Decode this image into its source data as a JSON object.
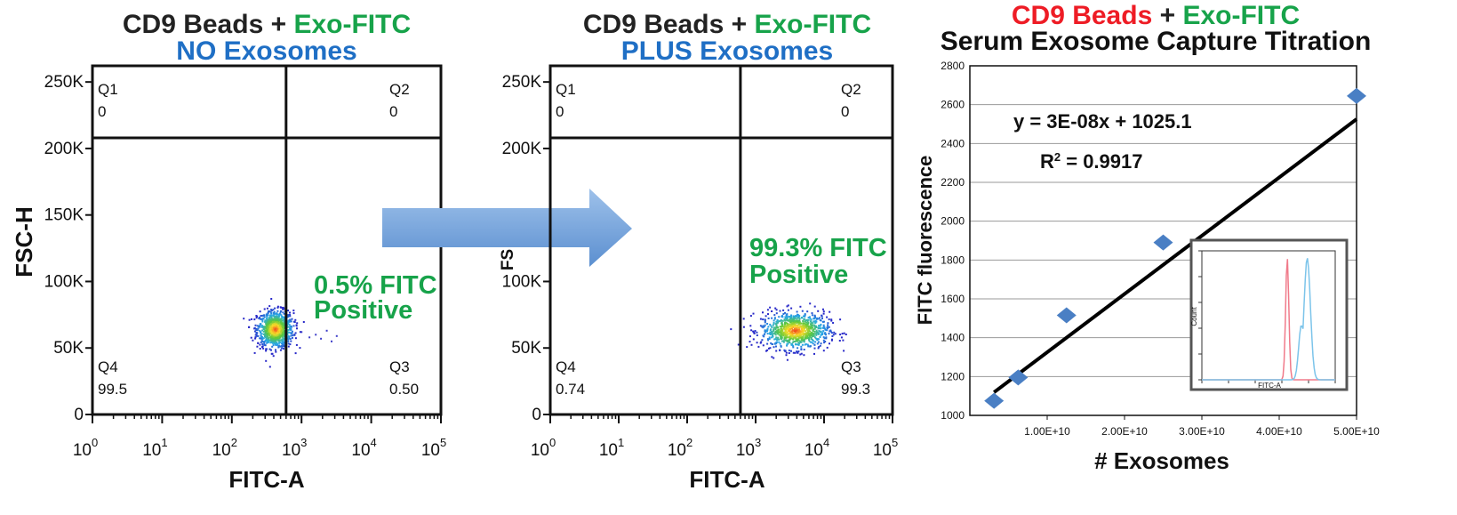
{
  "colors": {
    "dark": "#222222",
    "green": "#17a34a",
    "blue": "#1f6fc5",
    "red": "#ee1c25",
    "marker": "#4a7fc4",
    "arrow": "#6f9fd8"
  },
  "chart_data": [
    {
      "type": "scatter",
      "title_parts": [
        "CD9 Beads",
        " + ",
        "Exo-FITC"
      ],
      "subtitle": "NO Exosomes",
      "xlabel": "FITC-A",
      "ylabel": "FSC-H",
      "x_scale": "log",
      "xlim": [
        1,
        100000
      ],
      "ylim": [
        0,
        262144
      ],
      "x_tick_base": "10",
      "x_tick_exponents": [
        "0",
        "1",
        "2",
        "3",
        "4",
        "5"
      ],
      "y_ticks": [
        {
          "value": 0,
          "label": "0"
        },
        {
          "value": 50000,
          "label": "50K"
        },
        {
          "value": 100000,
          "label": "100K"
        },
        {
          "value": 150000,
          "label": "150K"
        },
        {
          "value": 200000,
          "label": "200K"
        },
        {
          "value": 250000,
          "label": "250K"
        }
      ],
      "gate": {
        "x": 600,
        "y": 208000
      },
      "quadrants": [
        {
          "name": "Q1",
          "value": "0",
          "position": "top-left"
        },
        {
          "name": "Q2",
          "value": "0",
          "position": "top-right"
        },
        {
          "name": "Q4",
          "value": "99.5",
          "position": "bottom-left"
        },
        {
          "name": "Q3",
          "value": "0.50",
          "position": "bottom-right"
        }
      ],
      "annotation": [
        "0.5% FITC",
        "Positive"
      ],
      "population": {
        "center_x": 420,
        "center_y": 64000,
        "spread_log_x": 0.13,
        "spread_y": 7000
      },
      "outliers": [
        {
          "x": 1000,
          "y": 62000
        },
        {
          "x": 1300,
          "y": 58000
        },
        {
          "x": 1600,
          "y": 60000
        },
        {
          "x": 1900,
          "y": 57000
        },
        {
          "x": 2300,
          "y": 63000
        },
        {
          "x": 2700,
          "y": 55000
        },
        {
          "x": 3200,
          "y": 59000
        }
      ]
    },
    {
      "type": "scatter",
      "title_parts": [
        "CD9 Beads",
        " + ",
        "Exo-FITC"
      ],
      "subtitle": "PLUS Exosomes",
      "xlabel": "FITC-A",
      "ylabel": "FS",
      "x_scale": "log",
      "xlim": [
        1,
        100000
      ],
      "ylim": [
        0,
        262144
      ],
      "x_tick_base": "10",
      "x_tick_exponents": [
        "0",
        "1",
        "2",
        "3",
        "4",
        "5"
      ],
      "y_ticks": [
        {
          "value": 0,
          "label": "0"
        },
        {
          "value": 50000,
          "label": "50K"
        },
        {
          "value": 100000,
          "label": "100K"
        },
        {
          "value": 200000,
          "label": "200K"
        },
        {
          "value": 250000,
          "label": "250K"
        }
      ],
      "gate": {
        "x": 600,
        "y": 208000
      },
      "quadrants": [
        {
          "name": "Q1",
          "value": "0",
          "position": "top-left"
        },
        {
          "name": "Q2",
          "value": "0",
          "position": "top-right"
        },
        {
          "name": "Q4",
          "value": "0.74",
          "position": "bottom-left"
        },
        {
          "name": "Q3",
          "value": "99.3",
          "position": "bottom-right"
        }
      ],
      "annotation": [
        "99.3% FITC",
        "Positive"
      ],
      "population": {
        "center_x": 3800,
        "center_y": 63000,
        "spread_log_x": 0.25,
        "spread_y": 7000
      },
      "outliers": []
    },
    {
      "type": "scatter",
      "title_parts": [
        "CD9 Beads",
        " + ",
        "Exo-FITC"
      ],
      "subtitle": "Serum Exosome Capture Titration",
      "xlabel": "# Exosomes",
      "ylabel": "FITC fluorescence",
      "xlim": [
        0,
        50000000000
      ],
      "ylim": [
        1000,
        2800
      ],
      "x_ticks": [
        {
          "value": 10000000000,
          "label": "1.00E+10"
        },
        {
          "value": 20000000000,
          "label": "2.00E+10"
        },
        {
          "value": 30000000000,
          "label": "3.00E+10"
        },
        {
          "value": 40000000000,
          "label": "4.00E+10"
        },
        {
          "value": 50000000000,
          "label": "5.00E+10"
        }
      ],
      "y_ticks": [
        1000,
        1200,
        1400,
        1600,
        1800,
        2000,
        2200,
        2400,
        2600,
        2800
      ],
      "grid": true,
      "points": [
        {
          "x": 3125000000,
          "y": 1075
        },
        {
          "x": 6250000000,
          "y": 1195
        },
        {
          "x": 12500000000,
          "y": 1515
        },
        {
          "x": 25000000000,
          "y": 1890
        },
        {
          "x": 50000000000,
          "y": 2645
        }
      ],
      "trendline": {
        "slope": 3e-08,
        "intercept": 1025.1,
        "x_from": 3125000000,
        "x_to": 50000000000
      },
      "equation": "y = 3E-08x + 1025.1",
      "r2_prefix": "R",
      "r2_sup": "2",
      "r2_value": " = 0.9917",
      "inset": {
        "type": "histogram",
        "xlabel": "FITC-A",
        "ylabel": "Count",
        "series": [
          {
            "color": "#f07a8a",
            "peak_log_x": 3.2
          },
          {
            "color": "#7cc4ea",
            "peak_log_x": 3.95
          }
        ]
      }
    }
  ]
}
